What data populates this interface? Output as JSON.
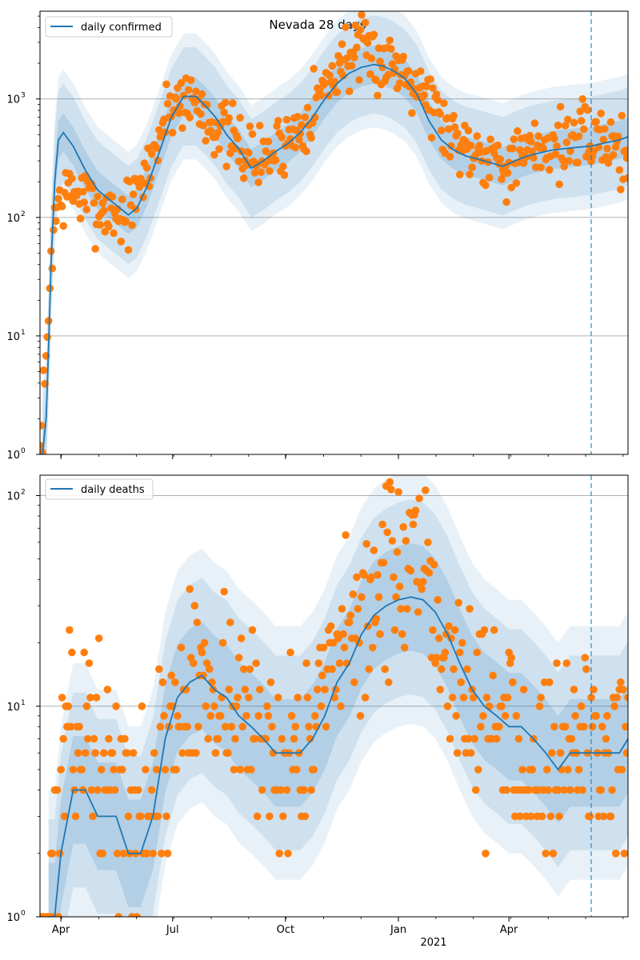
{
  "title": "Nevada 28 days",
  "colors": {
    "line": "#1f77b4",
    "points": "#ff7f0e",
    "band": "#1f77b4",
    "grid": "#b0b0b0",
    "forecast": "#1f77b4"
  },
  "chart_data": [
    {
      "type": "line",
      "panel": "top",
      "title": "Nevada 28 days",
      "legend": "daily confirmed",
      "legend_position": "top-left",
      "yscale": "log",
      "ylim": [
        1,
        5500
      ],
      "x_range_days": [
        -17,
        462
      ],
      "forecast_start_day": 432,
      "x_tick_labels": [
        "Apr",
        "Jul",
        "Oct",
        "Jan",
        "Apr"
      ],
      "x_tick_days": [
        0,
        91,
        183,
        275,
        365
      ],
      "year_label": "2021",
      "y_tick_labels": [
        {
          "base": "10",
          "exp": "0",
          "value": 1
        },
        {
          "base": "10",
          "exp": "1",
          "value": 10
        },
        {
          "base": "10",
          "exp": "2",
          "value": 100
        },
        {
          "base": "10",
          "exp": "3",
          "value": 1000
        }
      ],
      "series_knots": {
        "days": [
          -15,
          -12,
          -10,
          -8,
          -5,
          -2,
          2,
          10,
          20,
          30,
          40,
          48,
          55,
          62,
          70,
          80,
          90,
          100,
          110,
          118,
          126,
          135,
          145,
          155,
          165,
          175,
          185,
          195,
          205,
          215,
          225,
          235,
          245,
          255,
          262,
          270,
          280,
          290,
          300,
          310,
          320,
          330,
          340,
          350,
          360,
          370,
          380,
          390,
          400,
          410,
          420,
          432,
          445,
          455,
          462
        ],
        "median": [
          1,
          2,
          8,
          40,
          200,
          450,
          520,
          400,
          250,
          170,
          140,
          120,
          105,
          120,
          180,
          350,
          700,
          1050,
          1050,
          870,
          700,
          500,
          380,
          260,
          300,
          360,
          420,
          520,
          700,
          1000,
          1350,
          1650,
          1850,
          1950,
          1900,
          1750,
          1500,
          1100,
          650,
          450,
          370,
          330,
          310,
          290,
          270,
          300,
          330,
          350,
          370,
          380,
          390,
          400,
          430,
          450,
          480
        ],
        "band50_factor": 1.45,
        "band90_factor": 2.6,
        "band98_factor": 3.4
      },
      "observed_knots": {
        "days": [
          -17,
          -15,
          -12,
          -10,
          -8,
          -5,
          -2,
          2,
          10,
          20,
          30,
          40,
          50,
          60,
          70,
          80,
          90,
          100,
          110,
          120,
          130,
          140,
          150,
          160,
          170,
          180,
          190,
          200,
          210,
          220,
          230,
          240,
          250,
          260,
          270,
          280,
          290,
          300,
          310,
          320,
          330,
          340,
          350,
          360,
          370,
          380,
          390,
          400,
          410,
          420,
          430,
          440,
          450,
          462
        ],
        "values": [
          1,
          2,
          5,
          15,
          50,
          100,
          130,
          150,
          170,
          140,
          120,
          115,
          100,
          130,
          240,
          500,
          900,
          1050,
          950,
          700,
          560,
          430,
          370,
          300,
          330,
          420,
          520,
          700,
          1100,
          1500,
          2200,
          2400,
          2300,
          2100,
          2000,
          1800,
          1500,
          1050,
          650,
          480,
          420,
          380,
          350,
          300,
          290,
          330,
          400,
          420,
          430,
          450,
          470,
          480,
          420,
          300
        ]
      }
    },
    {
      "type": "line",
      "panel": "bottom",
      "legend": "daily deaths",
      "legend_position": "top-left",
      "yscale": "log",
      "ylim": [
        1,
        125
      ],
      "x_range_days": [
        -17,
        462
      ],
      "forecast_start_day": 432,
      "x_tick_labels": [
        "Apr",
        "Jul",
        "Oct",
        "Jan",
        "Apr"
      ],
      "x_tick_days": [
        0,
        91,
        183,
        275,
        365
      ],
      "year_label": "2021",
      "y_tick_labels": [
        {
          "base": "10",
          "exp": "0",
          "value": 1
        },
        {
          "base": "10",
          "exp": "1",
          "value": 10
        },
        {
          "base": "10",
          "exp": "2",
          "value": 100
        }
      ],
      "series_knots": {
        "days": [
          -10,
          -5,
          0,
          10,
          20,
          30,
          45,
          55,
          60,
          65,
          75,
          85,
          95,
          105,
          115,
          125,
          135,
          145,
          155,
          165,
          175,
          185,
          195,
          205,
          215,
          225,
          235,
          245,
          255,
          265,
          275,
          285,
          295,
          305,
          315,
          325,
          335,
          345,
          355,
          365,
          375,
          385,
          395,
          405,
          415,
          425,
          432,
          445,
          455,
          462
        ],
        "median": [
          1,
          1,
          2,
          4,
          4,
          3,
          3,
          2,
          2,
          2,
          3,
          7,
          11,
          13,
          14,
          12,
          11,
          9,
          8,
          7,
          6,
          6,
          6,
          7,
          9,
          13,
          16,
          22,
          27,
          30,
          32,
          33,
          32,
          28,
          22,
          16,
          12,
          10,
          9,
          8,
          8,
          7,
          6,
          5,
          6,
          6,
          6,
          6,
          6,
          7
        ],
        "band50_factor": 1.8,
        "band90_factor": 2.9,
        "band98_factor": 4.0
      },
      "observed_knots": {
        "days": [
          -17,
          -10,
          -5,
          0,
          10,
          20,
          30,
          45,
          55,
          60,
          65,
          75,
          85,
          95,
          105,
          115,
          125,
          135,
          145,
          155,
          165,
          175,
          185,
          195,
          205,
          215,
          225,
          235,
          245,
          255,
          265,
          275,
          285,
          295,
          305,
          315,
          325,
          335,
          345,
          355,
          365,
          375,
          385,
          395,
          405,
          415,
          425,
          432,
          445,
          455,
          462
        ],
        "values": [
          1,
          1,
          2,
          5,
          7,
          8,
          6,
          4,
          3,
          3,
          3,
          4,
          6,
          9,
          12,
          14,
          14,
          12,
          10,
          8,
          7,
          6,
          6,
          6,
          7,
          10,
          14,
          20,
          28,
          35,
          40,
          45,
          42,
          35,
          26,
          18,
          13,
          10,
          9,
          8,
          8,
          7,
          6,
          6,
          6,
          7,
          7,
          7,
          6,
          6,
          7
        ]
      }
    }
  ]
}
